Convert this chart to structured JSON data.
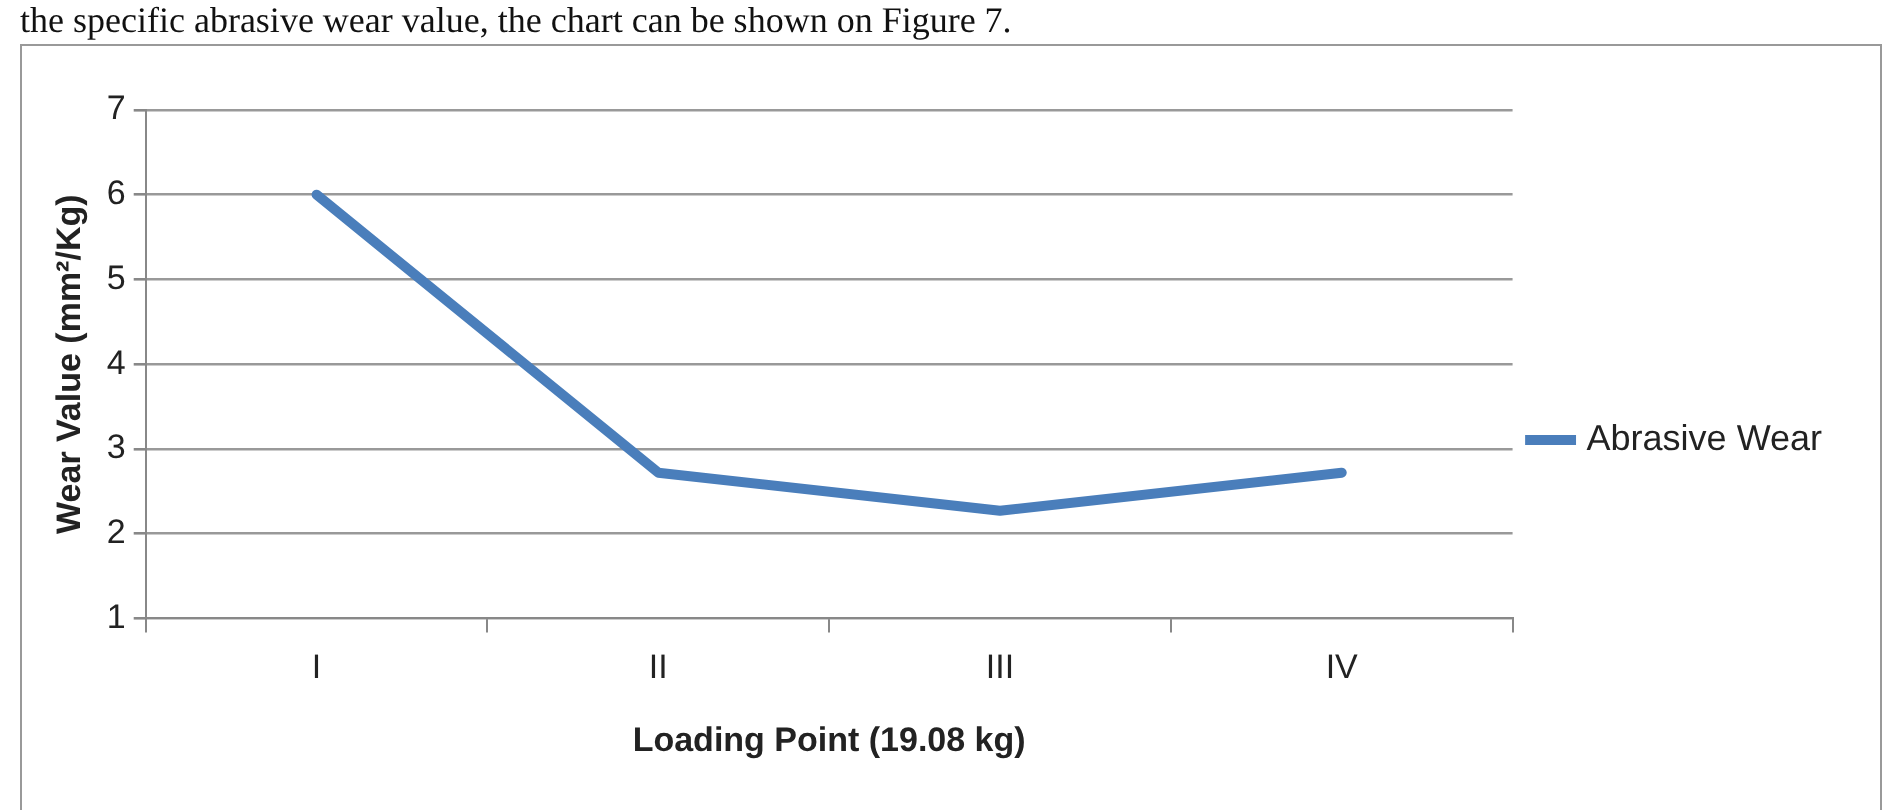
{
  "chart_data": {
    "type": "line",
    "xlabel": "Loading Point (19.08 kg)",
    "ylabel": "Wear Value (mm²/Kg)",
    "annotations": [
      "the specific abrasive wear value, the chart can be shown on Figure 7."
    ],
    "categories": [
      "I",
      "II",
      "III",
      "IV"
    ],
    "series": [
      {
        "name": "Abrasive Wear",
        "color": "#4a7ebb",
        "values": [
          6,
          2.72,
          2.27,
          2.72
        ]
      }
    ],
    "ylim": [
      1,
      7
    ],
    "yticks": [
      1,
      2,
      3,
      4,
      5,
      6,
      7
    ],
    "grid": "y",
    "legend": "right",
    "marker": "none",
    "line_style": "solid"
  }
}
